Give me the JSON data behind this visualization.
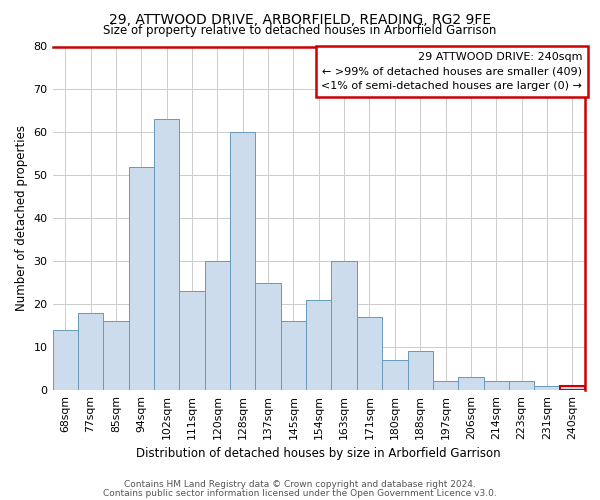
{
  "title1": "29, ATTWOOD DRIVE, ARBORFIELD, READING, RG2 9FE",
  "title2": "Size of property relative to detached houses in Arborfield Garrison",
  "xlabel": "Distribution of detached houses by size in Arborfield Garrison",
  "ylabel": "Number of detached properties",
  "categories": [
    "68sqm",
    "77sqm",
    "85sqm",
    "94sqm",
    "102sqm",
    "111sqm",
    "120sqm",
    "128sqm",
    "137sqm",
    "145sqm",
    "154sqm",
    "163sqm",
    "171sqm",
    "180sqm",
    "188sqm",
    "197sqm",
    "206sqm",
    "214sqm",
    "223sqm",
    "231sqm",
    "240sqm"
  ],
  "values": [
    14,
    18,
    16,
    52,
    63,
    23,
    30,
    60,
    25,
    16,
    21,
    30,
    17,
    7,
    9,
    2,
    3,
    2,
    2,
    1,
    1
  ],
  "bar_color": "#ccdcec",
  "bar_edge_color": "#6699bb",
  "highlight_index": 20,
  "highlight_edge_color": "#cc0000",
  "ylim": [
    0,
    80
  ],
  "yticks": [
    0,
    10,
    20,
    30,
    40,
    50,
    60,
    70,
    80
  ],
  "annotation_title": "29 ATTWOOD DRIVE: 240sqm",
  "annotation_line1": "← >99% of detached houses are smaller (409)",
  "annotation_line2": "<1% of semi-detached houses are larger (0) →",
  "annotation_box_color": "#ffffff",
  "annotation_box_edge": "#cc0000",
  "footer1": "Contains HM Land Registry data © Crown copyright and database right 2024.",
  "footer2": "Contains public sector information licensed under the Open Government Licence v3.0.",
  "bg_color": "#ffffff",
  "grid_color": "#cccccc"
}
